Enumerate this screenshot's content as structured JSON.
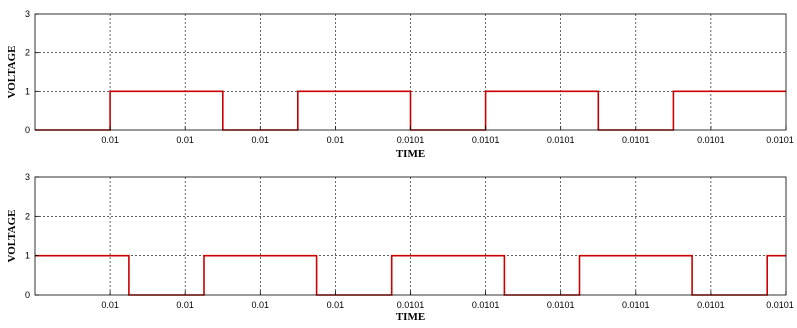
{
  "chart_data": [
    {
      "type": "line",
      "xlabel": "TIME",
      "ylabel": "VOLTAGE",
      "ylim": [
        0,
        3
      ],
      "y_ticks": [
        "0",
        "1",
        "2",
        "3"
      ],
      "x_tick_labels": [
        "0.01",
        "0.01",
        "0.01",
        "0.01",
        "0.0101",
        "0.0101",
        "0.0101",
        "0.0101",
        "0.0101",
        "0.0101"
      ],
      "grid": true,
      "line_color": "#cc0000",
      "series": [
        {
          "x": [
            0,
            1.0,
            1.0,
            2.5,
            2.5,
            3.5,
            3.5,
            5.0,
            5.0,
            6.0,
            6.0,
            7.5,
            7.5,
            8.5,
            8.5,
            10.0
          ],
          "values": [
            0,
            0,
            1,
            1,
            0,
            0,
            1,
            1,
            0,
            0,
            1,
            1,
            0,
            0,
            1,
            1
          ]
        }
      ]
    },
    {
      "type": "line",
      "xlabel": "TIME",
      "ylabel": "VOLTAGE",
      "ylim": [
        0,
        3
      ],
      "y_ticks": [
        "0",
        "1",
        "2",
        "3"
      ],
      "x_tick_labels": [
        "0.01",
        "0.01",
        "0.01",
        "0.01",
        "0.0101",
        "0.0101",
        "0.0101",
        "0.0101",
        "0.0101",
        "0.0101"
      ],
      "grid": true,
      "line_color": "#cc0000",
      "series": [
        {
          "x": [
            0,
            1.25,
            1.25,
            2.25,
            2.25,
            3.75,
            3.75,
            4.75,
            4.75,
            6.25,
            6.25,
            7.25,
            7.25,
            8.75,
            8.75,
            9.75,
            9.75,
            10.0
          ],
          "values": [
            1,
            1,
            0,
            0,
            1,
            1,
            0,
            0,
            1,
            1,
            0,
            0,
            1,
            1,
            0,
            0,
            1,
            1
          ]
        }
      ]
    }
  ]
}
